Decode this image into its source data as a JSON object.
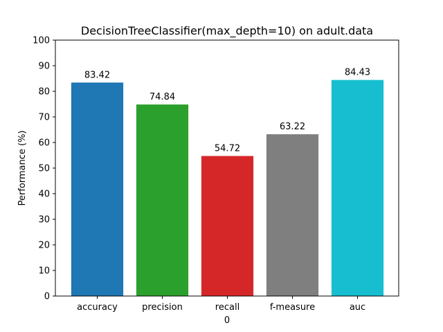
{
  "chart_data": {
    "type": "bar",
    "title": "DecisionTreeClassifier(max_depth=10) on adult.data",
    "xlabel": "0",
    "ylabel": "Performance (%)",
    "categories": [
      "accuracy",
      "precision",
      "recall",
      "f-measure",
      "auc"
    ],
    "values": [
      83.42,
      74.84,
      54.72,
      63.22,
      84.43
    ],
    "value_labels": [
      "83.42",
      "74.84",
      "54.72",
      "63.22",
      "84.43"
    ],
    "colors": [
      "#1f77b4",
      "#2ca02c",
      "#d62728",
      "#7f7f7f",
      "#17becf"
    ],
    "ylim": [
      0,
      100
    ],
    "yticks": [
      0,
      10,
      20,
      30,
      40,
      50,
      60,
      70,
      80,
      90,
      100
    ],
    "ytick_labels": [
      "0",
      "10",
      "20",
      "30",
      "40",
      "50",
      "60",
      "70",
      "80",
      "90",
      "100"
    ],
    "grid": false,
    "legend": "none"
  }
}
